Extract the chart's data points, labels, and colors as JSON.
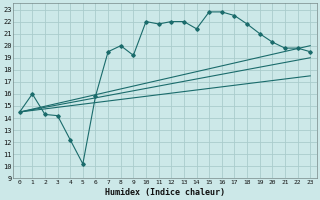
{
  "xlabel": "Humidex (Indice chaleur)",
  "bg_color": "#cce8e8",
  "grid_color": "#b0d8d8",
  "line_color": "#1a6b6b",
  "xlim": [
    -0.5,
    23.5
  ],
  "ylim": [
    9,
    23.5
  ],
  "xticks": [
    0,
    1,
    2,
    3,
    4,
    5,
    6,
    7,
    8,
    9,
    10,
    11,
    12,
    13,
    14,
    15,
    16,
    17,
    18,
    19,
    20,
    21,
    22,
    23
  ],
  "yticks": [
    9,
    10,
    11,
    12,
    13,
    14,
    15,
    16,
    17,
    18,
    19,
    20,
    21,
    22,
    23
  ],
  "line1_x": [
    0,
    1,
    2,
    3,
    4,
    5,
    6,
    7,
    8,
    9,
    10,
    11,
    12,
    13,
    14,
    15,
    16,
    17,
    18,
    19,
    20,
    21,
    22,
    23
  ],
  "line1_y": [
    14.5,
    16.0,
    14.3,
    14.2,
    12.2,
    10.2,
    15.8,
    19.5,
    20.0,
    19.2,
    22.0,
    21.8,
    22.0,
    22.0,
    21.4,
    22.8,
    22.8,
    22.5,
    21.8,
    21.0,
    20.3,
    19.8,
    19.8,
    19.5
  ],
  "line2_x": [
    0,
    23
  ],
  "line2_y": [
    14.5,
    20.0
  ],
  "line3_x": [
    0,
    23
  ],
  "line3_y": [
    14.5,
    19.0
  ],
  "line4_x": [
    0,
    23
  ],
  "line4_y": [
    14.5,
    17.5
  ]
}
